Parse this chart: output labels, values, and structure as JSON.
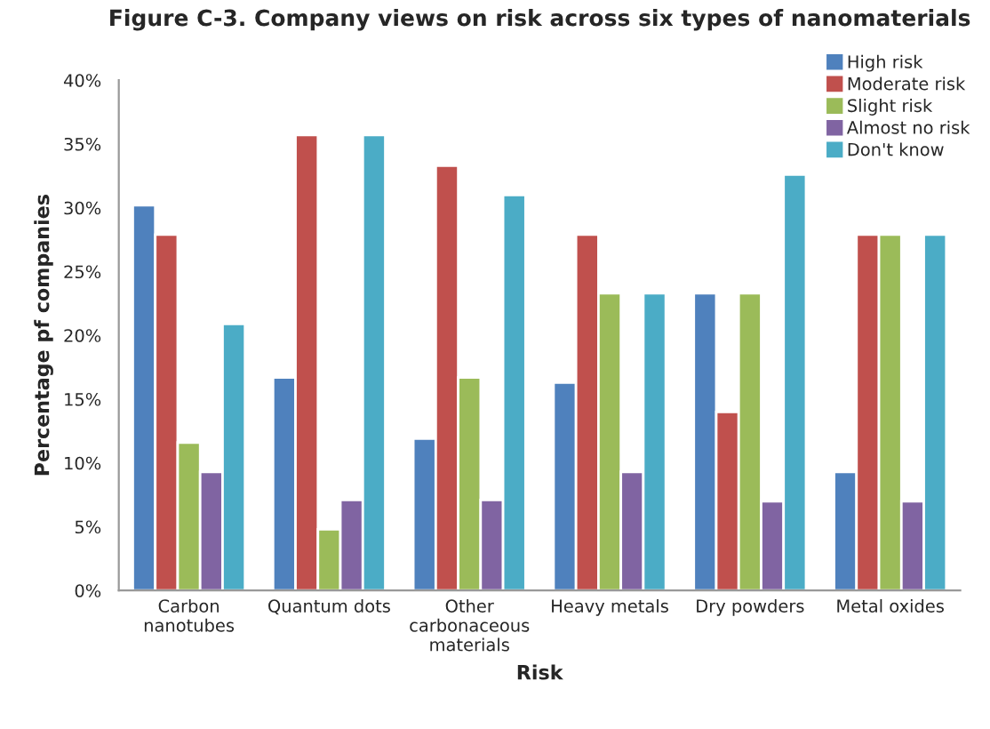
{
  "chart_data": {
    "type": "bar",
    "title": "Figure C-3. Company views on risk across six types of nanomaterials",
    "xlabel": "Risk",
    "ylabel": "Percentage pf companies",
    "categories": [
      "Carbon nanotubes",
      "Quantum dots",
      "Other carbonaceous materials",
      "Heavy metals",
      "Dry powders",
      "Metal oxides"
    ],
    "series": [
      {
        "name": "High risk",
        "color": "#4f81bd",
        "values": [
          30.2,
          16.7,
          11.9,
          16.3,
          23.3,
          9.3
        ]
      },
      {
        "name": "Moderate risk",
        "color": "#c0504d",
        "values": [
          27.9,
          35.7,
          33.3,
          27.9,
          14.0,
          27.9
        ]
      },
      {
        "name": "Slight risk",
        "color": "#9bbb59",
        "values": [
          11.6,
          4.8,
          16.7,
          23.3,
          23.3,
          27.9
        ]
      },
      {
        "name": "Almost no risk",
        "color": "#8064a2",
        "values": [
          9.3,
          7.1,
          7.1,
          9.3,
          7.0,
          7.0
        ]
      },
      {
        "name": "Don't know",
        "color": "#4bacc6",
        "values": [
          20.9,
          35.7,
          31.0,
          23.3,
          32.6,
          27.9
        ]
      }
    ],
    "ylim": [
      0,
      40
    ],
    "yticks": [
      {
        "value": 0,
        "label": "0%"
      },
      {
        "value": 5,
        "label": "5%"
      },
      {
        "value": 10,
        "label": "10%"
      },
      {
        "value": 15,
        "label": "15%"
      },
      {
        "value": 20,
        "label": "20%"
      },
      {
        "value": 25,
        "label": "25%"
      },
      {
        "value": 30,
        "label": "30%"
      },
      {
        "value": 35,
        "label": "35%"
      },
      {
        "value": 40,
        "label": "40%"
      }
    ],
    "grid": false,
    "legend": "top right"
  }
}
